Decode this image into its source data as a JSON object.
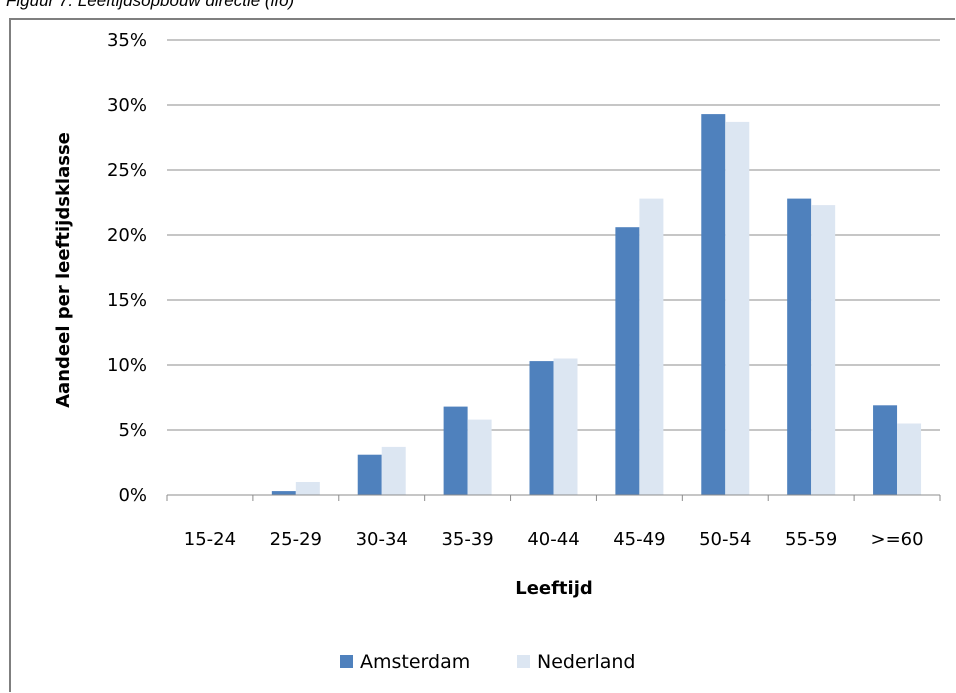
{
  "caption": "Figuur 7. Leeftijdsopbouw directie (ifo)",
  "chart_data": {
    "type": "bar",
    "categories": [
      "15-24",
      "25-29",
      "30-34",
      "35-39",
      "40-44",
      "45-49",
      "50-54",
      "55-59",
      ">=60"
    ],
    "series": [
      {
        "name": "Amsterdam",
        "color": "#4f81bd",
        "values": [
          0.0,
          0.3,
          3.1,
          6.8,
          10.3,
          20.6,
          29.3,
          22.8,
          6.9
        ]
      },
      {
        "name": "Nederland",
        "color": "#dce6f2",
        "values": [
          0.0,
          1.0,
          3.7,
          5.8,
          10.5,
          22.8,
          28.7,
          22.3,
          5.5
        ]
      }
    ],
    "xlabel": "Leeftijd",
    "ylabel": "Aandeel per leeftijdsklasse",
    "ylim": [
      0,
      35
    ],
    "yticks": [
      0,
      5,
      10,
      15,
      20,
      25,
      30,
      35
    ],
    "ytick_labels": [
      "0%",
      "5%",
      "10%",
      "15%",
      "20%",
      "25%",
      "30%",
      "35%"
    ],
    "grid": true,
    "legend_position": "bottom"
  }
}
